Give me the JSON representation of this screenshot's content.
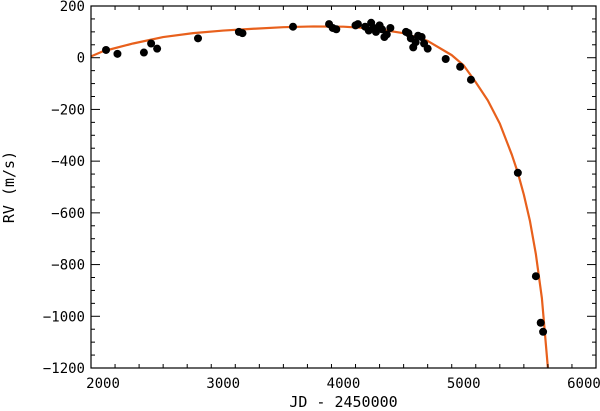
{
  "chart_data": {
    "type": "scatter",
    "xlabel": "JD - 2450000",
    "ylabel": "RV (m/s)",
    "xlim": [
      1900,
      6100
    ],
    "ylim": [
      -1200,
      200
    ],
    "x_ticks": [
      2000,
      3000,
      4000,
      5000,
      6000
    ],
    "y_ticks": [
      200,
      0,
      -200,
      -400,
      -600,
      -800,
      -1000,
      -1200
    ],
    "x_minor_step": 200,
    "y_minor_step": 50,
    "grid": false,
    "colors": {
      "points": "#000000",
      "curve": "#e8601c"
    },
    "series": [
      {
        "type": "scatter",
        "x": [
          2025,
          2120,
          2340,
          2400,
          2450,
          2790,
          3130,
          3160,
          3580,
          3880,
          3910,
          3940,
          4100,
          4120,
          4180,
          4210,
          4230,
          4250,
          4270,
          4300,
          4320,
          4340,
          4360,
          4390,
          4520,
          4540,
          4560,
          4580,
          4600,
          4620,
          4650,
          4670,
          4700,
          4850,
          4970,
          5060,
          5450,
          5600,
          5640,
          5660
        ],
        "y": [
          30,
          15,
          20,
          55,
          35,
          75,
          100,
          95,
          120,
          130,
          115,
          110,
          125,
          130,
          120,
          105,
          135,
          115,
          100,
          125,
          110,
          80,
          90,
          115,
          100,
          95,
          75,
          40,
          60,
          85,
          80,
          55,
          35,
          -5,
          -35,
          -85,
          -445,
          -845,
          -1025,
          -1060
        ]
      },
      {
        "type": "line",
        "x": [
          1900,
          2000,
          2250,
          2500,
          2750,
          3000,
          3250,
          3500,
          3750,
          4000,
          4250,
          4500,
          4700,
          4900,
          5000,
          5100,
          5200,
          5300,
          5400,
          5450,
          5500,
          5550,
          5600,
          5650,
          5700
        ],
        "y": [
          5,
          25,
          55,
          80,
          95,
          105,
          112,
          118,
          121,
          120,
          113,
          95,
          65,
          10,
          -30,
          -95,
          -165,
          -255,
          -375,
          -445,
          -530,
          -630,
          -760,
          -930,
          -1200
        ]
      }
    ]
  }
}
